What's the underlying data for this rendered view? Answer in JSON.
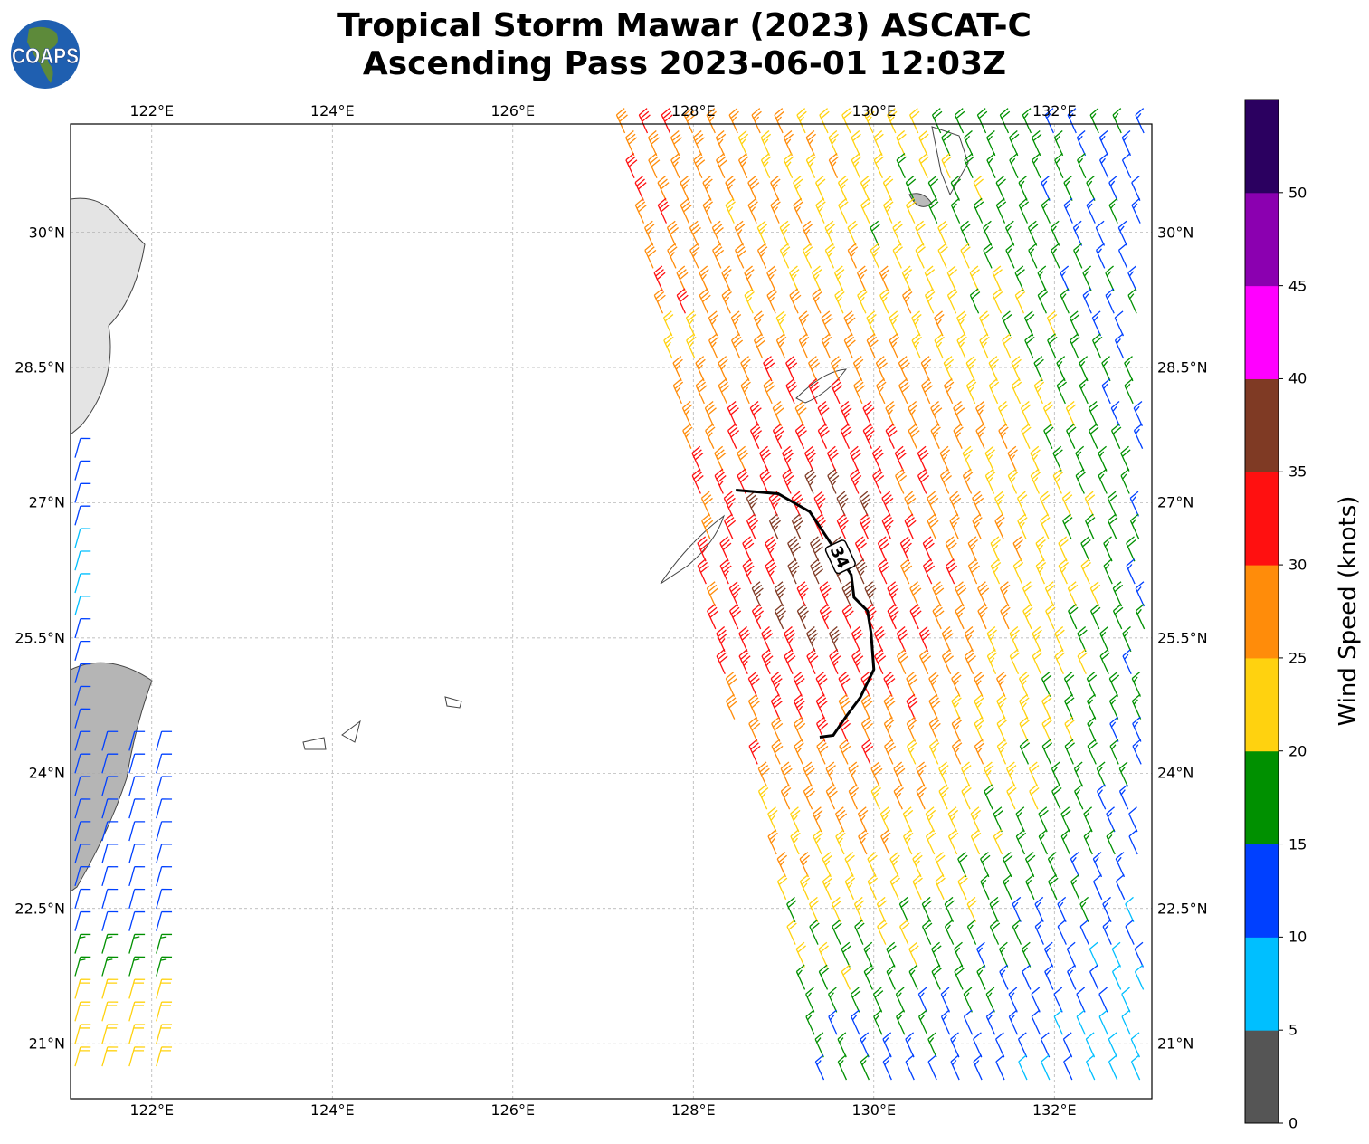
{
  "title": {
    "line1": "Tropical Storm Mawar (2023) ASCAT-C",
    "line2": "Ascending Pass 2023-06-01 12:03Z"
  },
  "logo": {
    "text": "COAPS"
  },
  "map": {
    "extent": {
      "lon": [
        121.1,
        133.08
      ],
      "lat": [
        20.39,
        31.2
      ]
    },
    "lon_ticks": [
      {
        "value": 122,
        "label": "122°E"
      },
      {
        "value": 124,
        "label": "124°E"
      },
      {
        "value": 126,
        "label": "126°E"
      },
      {
        "value": 128,
        "label": "128°E"
      },
      {
        "value": 130,
        "label": "130°E"
      },
      {
        "value": 132,
        "label": "132°E"
      }
    ],
    "lat_ticks": [
      {
        "value": 30,
        "label": "30°N"
      },
      {
        "value": 28.5,
        "label": "28.5°N"
      },
      {
        "value": 27,
        "label": "27°N"
      },
      {
        "value": 25.5,
        "label": "25.5°N"
      },
      {
        "value": 24,
        "label": "24°N"
      },
      {
        "value": 22.5,
        "label": "22.5°N"
      },
      {
        "value": 21,
        "label": "21°N"
      }
    ],
    "grid": true,
    "contour_34kt": {
      "label": "34",
      "label_position": [
        129.63,
        26.4
      ],
      "points": [
        [
          128.47,
          27.14
        ],
        [
          128.94,
          27.1
        ],
        [
          129.29,
          26.9
        ],
        [
          129.49,
          26.6
        ],
        [
          129.75,
          26.2
        ],
        [
          129.78,
          25.95
        ],
        [
          129.93,
          25.8
        ],
        [
          129.97,
          25.55
        ],
        [
          130.0,
          25.15
        ],
        [
          129.85,
          24.84
        ],
        [
          129.7,
          24.64
        ],
        [
          129.55,
          24.42
        ],
        [
          129.4,
          24.4
        ]
      ]
    }
  },
  "colorbar": {
    "label": "Wind Speed (knots)",
    "range": [
      0,
      55
    ],
    "ticks": [
      "0",
      "5",
      "10",
      "15",
      "20",
      "25",
      "30",
      "35",
      "40",
      "45",
      "50"
    ],
    "colors": [
      "#555555",
      "#00bfff",
      "#0040ff",
      "#009000",
      "#ffd20f",
      "#ff8c0a",
      "#ff1010",
      "#7f3a24",
      "#ff00ff",
      "#8b00b0",
      "#2b0060"
    ]
  }
}
